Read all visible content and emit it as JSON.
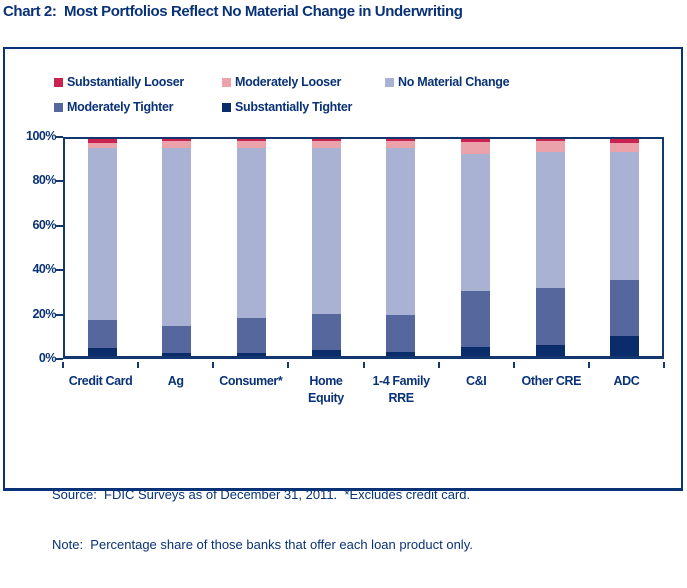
{
  "title": "Chart 2:  Most Portfolios Reflect No Material Change in Underwriting",
  "colors": {
    "text_navy": "#0A3277",
    "axis_navy": "#14366E",
    "substantially_looser": "#CB2350",
    "moderately_looser": "#ECA2AB",
    "no_material_change": "#A9B2D2",
    "moderately_tighter": "#56679D",
    "substantially_tighter": "#0A2C6B"
  },
  "legend": {
    "rows": [
      [
        {
          "label": "Substantially Looser",
          "color": "#CB2350"
        },
        {
          "label": "Moderately Looser",
          "color": "#ECA2AB"
        },
        {
          "label": "No Material Change",
          "color": "#A9B2D2"
        }
      ],
      [
        {
          "label": "Moderately Tighter",
          "color": "#56679D"
        },
        {
          "label": "Substantially Tighter",
          "color": "#0A2C6B"
        }
      ]
    ]
  },
  "chart_data": {
    "type": "bar",
    "stacked": true,
    "grid": false,
    "legend_position": "top",
    "ylim": [
      0,
      100
    ],
    "ylabel": "",
    "xlabel": "",
    "categories": [
      "Credit Card",
      "Ag",
      "Consumer*",
      "Home Equity",
      "1-4 Family RRE",
      "C&I",
      "Other CRE",
      "ADC"
    ],
    "series": [
      {
        "name": "Substantially Tighter",
        "color": "#0A2C6B",
        "values": [
          3.5,
          1.5,
          1.5,
          3,
          2,
          4,
          5,
          9
        ]
      },
      {
        "name": "Moderately Tighter",
        "color": "#56679D",
        "values": [
          13,
          12.5,
          16,
          16.5,
          17,
          26,
          26.5,
          26
        ]
      },
      {
        "name": "No Material Change",
        "color": "#A9B2D2",
        "values": [
          79.5,
          82,
          78.5,
          76.5,
          77,
          63,
          62.5,
          59
        ]
      },
      {
        "name": "Moderately Looser",
        "color": "#ECA2AB",
        "values": [
          2,
          3,
          3,
          3,
          3,
          5.5,
          5,
          4
        ]
      },
      {
        "name": "Substantially Looser",
        "color": "#CB2350",
        "values": [
          2,
          1,
          1,
          1,
          1,
          1.5,
          1,
          2
        ]
      }
    ],
    "y_ticks": [
      {
        "label": "0%",
        "value": 0
      },
      {
        "label": "20%",
        "value": 20
      },
      {
        "label": "40%",
        "value": 40
      },
      {
        "label": "60%",
        "value": 60
      },
      {
        "label": "80%",
        "value": 80
      },
      {
        "label": "100%",
        "value": 100
      }
    ]
  },
  "footer": {
    "source_line": "Source:  FDIC Surveys as of December 31, 2011.  *Excludes credit card.",
    "note_line": "Note:  Percentage share of those banks that offer each loan product only."
  }
}
